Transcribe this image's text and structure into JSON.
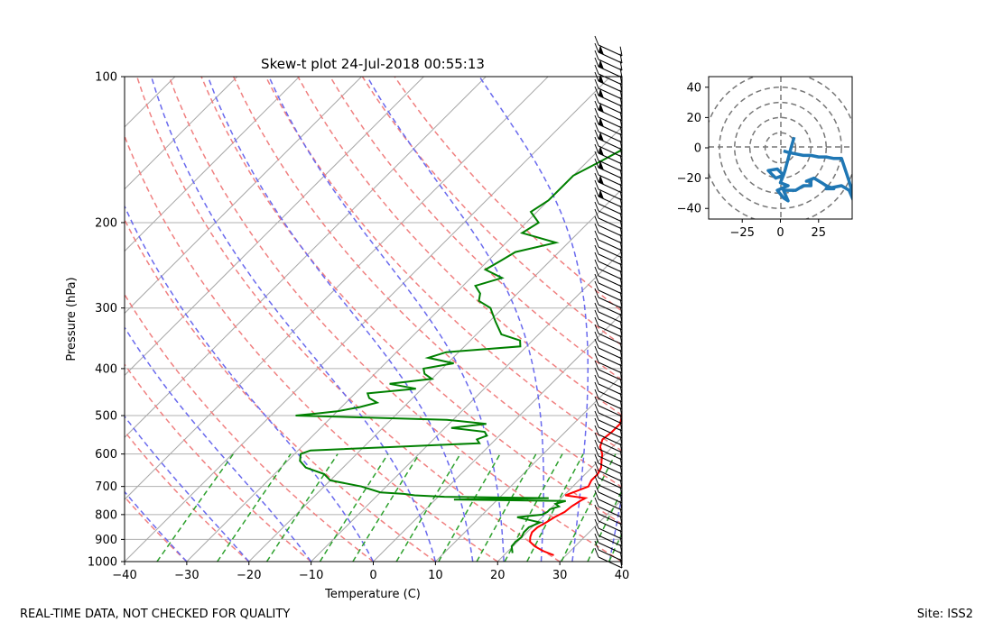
{
  "footer": {
    "disclaimer": "REAL-TIME DATA, NOT CHECKED FOR QUALITY",
    "site": "Site: ISS2"
  },
  "colors": {
    "temperature": "#ff0000",
    "dewpoint": "#008000",
    "dry_adiabat": "#f08080",
    "moist_adiabat": "#6a6aee",
    "mixing_ratio": "#2ca02c",
    "isotherm": "#a0a0a0",
    "hodograph": "#1f77b4"
  },
  "chart_data": [
    {
      "type": "line",
      "title": "Skew-t plot 24-Jul-2018 00:55:13",
      "xlabel": "Temperature (C)",
      "ylabel": "Pressure (hPa)",
      "xlim": [
        -40,
        40
      ],
      "ylim": [
        1000,
        100
      ],
      "y_scale": "log",
      "x_ticks": [
        "−40",
        "−30",
        "−20",
        "−10",
        "0",
        "10",
        "20",
        "30",
        "40"
      ],
      "y_ticks": [
        "100",
        "200",
        "300",
        "400",
        "500",
        "600",
        "700",
        "800",
        "900",
        "1000"
      ],
      "grid": true,
      "series": [
        {
          "key": "temperature",
          "pressure": [
            970,
            950,
            930,
            910,
            890,
            870,
            850,
            830,
            810,
            790,
            770,
            750,
            740,
            730,
            720,
            700,
            680,
            660,
            640,
            620,
            600,
            580,
            560,
            540,
            520,
            500,
            480,
            460,
            440,
            420,
            400,
            380,
            360,
            340,
            320,
            300,
            280,
            260,
            240,
            220,
            200,
            190,
            180,
            170,
            160,
            150,
            140,
            130,
            120,
            110,
            100
          ],
          "values": [
            28,
            25.5,
            23.5,
            22,
            21.3,
            20.8,
            20.9,
            21.5,
            22,
            22.8,
            23,
            23.5,
            23.9,
            20.2,
            21,
            22.5,
            22,
            22,
            21.5,
            20.5,
            19.5,
            18,
            17.2,
            17.5,
            17.5,
            16.5,
            15.5,
            14.5,
            13,
            11.5,
            10,
            8,
            6,
            4,
            2,
            0,
            -2.5,
            -5,
            -7.5,
            -10,
            -12,
            -13,
            -15,
            -16.2,
            -16.5,
            -17,
            -18,
            -19.5,
            -21.5,
            -24,
            -26
          ]
        },
        {
          "key": "dewpoint",
          "pressure": [
            960,
            930,
            910,
            890,
            870,
            850,
            830,
            810,
            800,
            790,
            780,
            770,
            760,
            750,
            745,
            740,
            735,
            730,
            725,
            720,
            700,
            680,
            660,
            640,
            620,
            600,
            590,
            580,
            570,
            560,
            550,
            540,
            530,
            520,
            510,
            500,
            495,
            490,
            480,
            470,
            460,
            450,
            440,
            430,
            420,
            410,
            400,
            390,
            380,
            370,
            360,
            350,
            340,
            320,
            300,
            290,
            280,
            270,
            260,
            250,
            240,
            230,
            220,
            210,
            200,
            190,
            180,
            170,
            160,
            150,
            140,
            130,
            120,
            110,
            105,
            100
          ],
          "values": [
            21,
            19.8,
            19.7,
            19.9,
            19.5,
            19.5,
            20.5,
            16,
            19.6,
            20,
            20,
            21,
            20,
            21.2,
            3,
            18,
            1,
            -4,
            -6,
            -10,
            -14,
            -20,
            -22,
            -26,
            -28,
            -29,
            -28,
            -15,
            -2,
            -3,
            -2,
            -3,
            -9,
            -4,
            -11,
            -36,
            -33,
            -30,
            -27,
            -25,
            -27,
            -28,
            -21,
            -26,
            -20,
            -22,
            -23,
            -19,
            -24,
            -22,
            -11,
            -12,
            -16,
            -19,
            -22,
            -25,
            -26,
            -28,
            -25,
            -29,
            -28,
            -27,
            -22,
            -29,
            -28,
            -31,
            -30,
            -30,
            -30,
            -28,
            -26,
            -24,
            -22,
            -20,
            -22,
            -19
          ]
        }
      ]
    },
    {
      "type": "line",
      "title": "",
      "xlim": [
        -47,
        47
      ],
      "ylim": [
        -47,
        47
      ],
      "x_ticks": [
        "−25",
        "0",
        "25"
      ],
      "y_ticks": [
        "40",
        "20",
        "0",
        "−20",
        "−40"
      ],
      "rings": [
        10,
        20,
        30,
        40,
        50
      ],
      "u": [
        9,
        7,
        3,
        2,
        -2,
        -8,
        -5,
        -3,
        2,
        0,
        5,
        -2,
        2,
        5,
        2,
        10,
        15,
        20,
        20,
        17,
        22,
        27,
        30,
        35,
        30,
        40,
        45,
        50,
        45,
        40,
        35,
        30,
        25,
        20,
        15,
        10,
        5,
        2
      ],
      "v": [
        7,
        0,
        -15,
        -18,
        -14,
        -15,
        -18,
        -20,
        -18,
        -23,
        -25,
        -28,
        -33,
        -35,
        -28,
        -28,
        -25,
        -25,
        -22,
        -22,
        -20,
        -23,
        -25,
        -27,
        -27,
        -25,
        -28,
        -40,
        -22,
        -7,
        -7,
        -6,
        -6,
        -5,
        -5,
        -4,
        -3,
        -2
      ]
    }
  ]
}
